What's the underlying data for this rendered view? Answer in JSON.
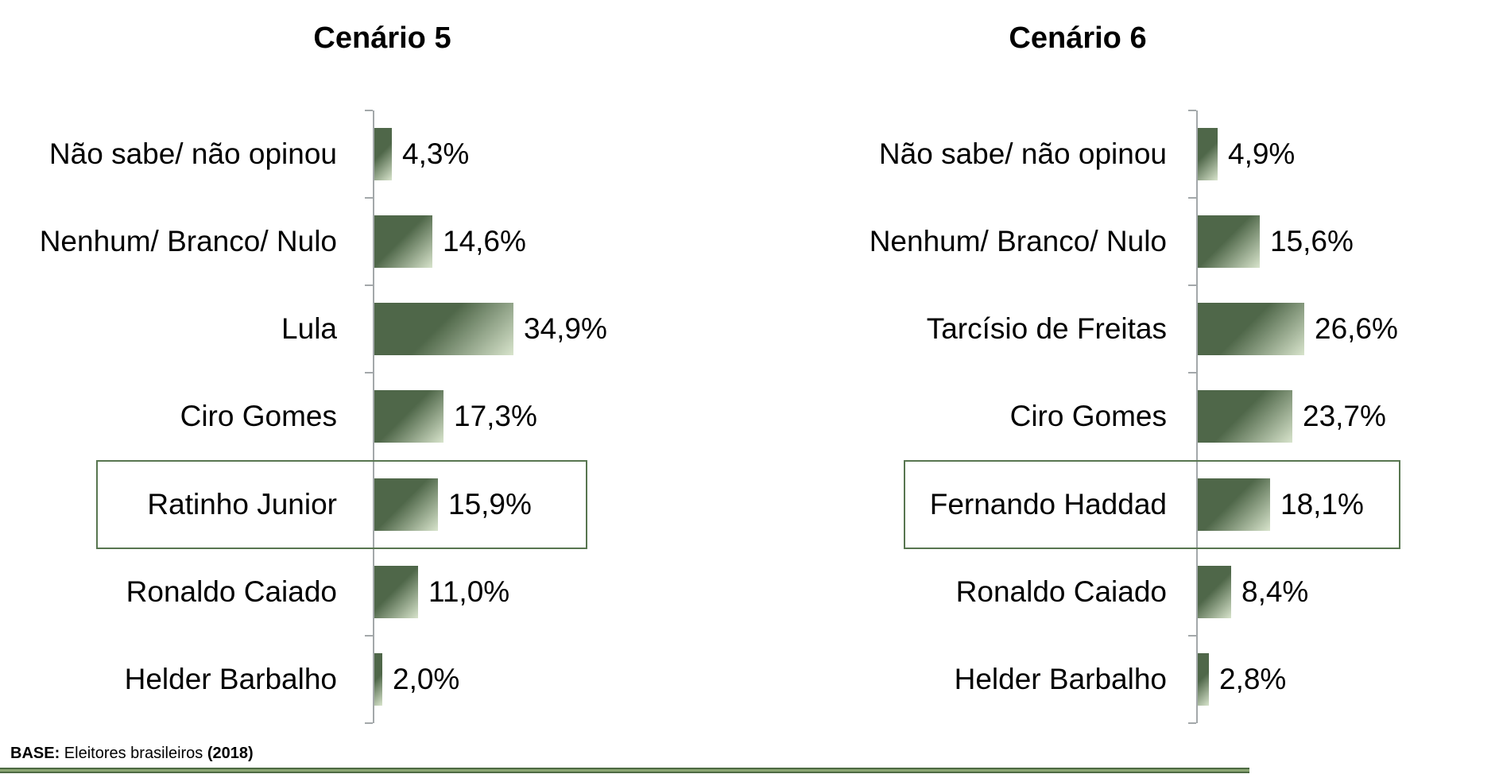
{
  "colors": {
    "bar_dark": "#4f6749",
    "bar_light": "#d8e4cc",
    "axis_gray": "#a3a8aa",
    "highlight_border": "#587650",
    "accent_strip": "#8aa573"
  },
  "chart_data": [
    {
      "type": "bar",
      "orientation": "horizontal",
      "title": "Cenário 5",
      "categories": [
        "Não sabe/ não opinou",
        "Nenhum/ Branco/ Nulo",
        "Lula",
        "Ciro Gomes",
        "Ratinho Junior",
        "Ronaldo Caiado",
        "Helder Barbalho"
      ],
      "values": [
        4.3,
        14.6,
        34.9,
        17.3,
        15.9,
        11.0,
        2.0
      ],
      "value_labels": [
        "4,3%",
        "14,6%",
        "34,9%",
        "17,3%",
        "15,9%",
        "11,0%",
        "2,0%"
      ],
      "highlight_index": 4,
      "highlighted_category": "Ratinho Junior",
      "legend": "none",
      "grid": "off"
    },
    {
      "type": "bar",
      "orientation": "horizontal",
      "title": "Cenário 6",
      "categories": [
        "Não sabe/ não opinou",
        "Nenhum/ Branco/ Nulo",
        "Tarcísio de Freitas",
        "Ciro Gomes",
        "Fernando Haddad",
        "Ronaldo Caiado",
        "Helder Barbalho"
      ],
      "values": [
        4.9,
        15.6,
        26.6,
        23.7,
        18.1,
        8.4,
        2.8
      ],
      "value_labels": [
        "4,9%",
        "15,6%",
        "26,6%",
        "23,7%",
        "18,1%",
        "8,4%",
        "2,8%"
      ],
      "highlight_index": 4,
      "highlighted_category": "Fernando Haddad",
      "legend": "none",
      "grid": "off"
    }
  ],
  "footer": {
    "base_label": "BASE:",
    "base_text": " Eleitores brasileiros ",
    "base_year": "(2018)"
  }
}
